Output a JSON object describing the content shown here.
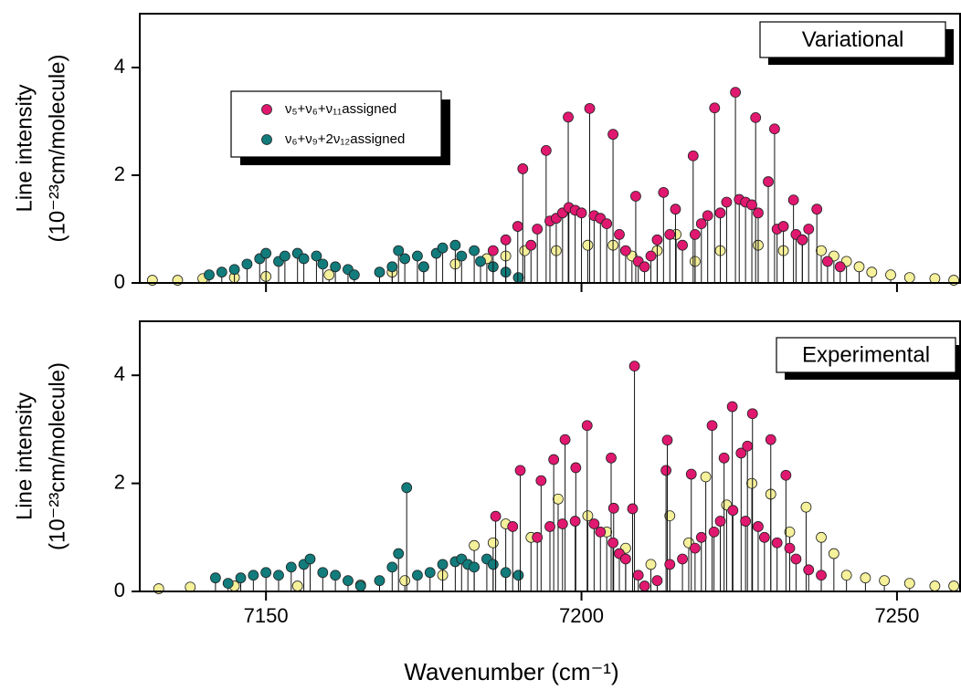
{
  "chart_data": [
    {
      "type": "stem",
      "title": "Variational",
      "ylabel": [
        "Line intensity",
        "(10⁻²³cm/molecule)"
      ],
      "xlim": [
        7130,
        7260
      ],
      "ylim": [
        0,
        5
      ],
      "xticks": [
        7150,
        7200,
        7250
      ],
      "yticks": [
        0,
        2,
        4
      ],
      "show_xtick_labels": false,
      "legend": "upper left",
      "series": [
        {
          "name": "ν₅+ν₆+ν₁₁assigned",
          "color": "#e0186f",
          "x": [
            7190.7,
            7194.4,
            7197.9,
            7201.3,
            7205.0,
            7208.6,
            7217.7,
            7221.1,
            7224.4,
            7227.6,
            7230.6,
            7229.6,
            7233.6,
            7237.3,
            7213.0,
            7214.9,
            7189.9,
            7186,
            7188,
            7192,
            7193,
            7195,
            7196,
            7197,
            7198,
            7199,
            7200,
            7202,
            7203,
            7204,
            7206,
            7207,
            7209,
            7210,
            7211,
            7212,
            7214,
            7216,
            7218,
            7219,
            7220,
            7222,
            7223,
            7225,
            7226,
            7227,
            7228,
            7231,
            7232,
            7234,
            7235,
            7236,
            7239,
            7241
          ],
          "values": [
            2.12,
            2.46,
            3.08,
            3.24,
            2.76,
            1.61,
            2.36,
            3.25,
            3.54,
            3.07,
            2.86,
            1.88,
            1.54,
            1.37,
            1.68,
            1.37,
            1.05,
            0.6,
            0.8,
            0.7,
            1.0,
            1.15,
            1.2,
            1.3,
            1.4,
            1.35,
            1.3,
            1.25,
            1.2,
            1.1,
            0.9,
            0.6,
            0.4,
            0.3,
            0.5,
            0.8,
            0.9,
            0.7,
            0.9,
            1.1,
            1.25,
            1.3,
            1.5,
            1.55,
            1.5,
            1.45,
            1.3,
            1.0,
            1.05,
            0.9,
            0.8,
            1.0,
            0.4,
            0.3
          ]
        },
        {
          "name": "ν₆+ν₉+2ν₁₂assigned",
          "color": "#127b7b",
          "x": [
            7141,
            7143,
            7145,
            7147,
            7149,
            7150,
            7152,
            7153,
            7155,
            7156,
            7158,
            7159,
            7161,
            7163,
            7164,
            7168,
            7170,
            7171,
            7172,
            7174,
            7175,
            7177,
            7178,
            7180,
            7181,
            7183,
            7184,
            7186,
            7188,
            7190
          ],
          "values": [
            0.15,
            0.2,
            0.25,
            0.35,
            0.45,
            0.55,
            0.4,
            0.5,
            0.55,
            0.45,
            0.5,
            0.35,
            0.3,
            0.25,
            0.15,
            0.2,
            0.3,
            0.6,
            0.45,
            0.5,
            0.3,
            0.55,
            0.65,
            0.7,
            0.5,
            0.6,
            0.4,
            0.3,
            0.2,
            0.1
          ]
        },
        {
          "color": "#f5f09a",
          "x": [
            7132,
            7136,
            7140,
            7145,
            7150,
            7160,
            7170,
            7175,
            7180,
            7185,
            7188,
            7191,
            7196,
            7201,
            7205,
            7208,
            7212,
            7215,
            7218,
            7222,
            7228,
            7232,
            7235,
            7238,
            7240,
            7242,
            7244,
            7246,
            7249,
            7252,
            7256,
            7259
          ],
          "values": [
            0.05,
            0.05,
            0.08,
            0.1,
            0.12,
            0.15,
            0.2,
            0.3,
            0.35,
            0.45,
            0.5,
            0.6,
            0.6,
            0.7,
            0.7,
            0.5,
            0.6,
            0.9,
            0.4,
            0.6,
            0.7,
            0.6,
            0.8,
            0.6,
            0.5,
            0.4,
            0.3,
            0.2,
            0.15,
            0.1,
            0.08,
            0.05
          ]
        }
      ]
    },
    {
      "type": "stem",
      "title": "Experimental",
      "ylabel": [
        "Line intensity",
        "(10⁻²³cm/molecule)"
      ],
      "xlabel": "Wavenumber (cm⁻¹)",
      "xlim": [
        7130,
        7260
      ],
      "ylim": [
        0,
        5
      ],
      "xticks": [
        7150,
        7200,
        7250
      ],
      "yticks": [
        0,
        2,
        4
      ],
      "show_xtick_labels": true,
      "series": [
        {
          "color": "#e0186f",
          "x": [
            7208.4,
            7190.3,
            7193.6,
            7195.6,
            7197.4,
            7199.1,
            7200.9,
            7204.7,
            7205.1,
            7208.1,
            7213.4,
            7213.6,
            7217.4,
            7220.7,
            7222.6,
            7223.9,
            7225.3,
            7226.3,
            7227.1,
            7230.0,
            7232.4,
            7186.4,
            7189.1,
            7193,
            7195,
            7197,
            7199,
            7202,
            7203,
            7205,
            7206,
            7207,
            7209,
            7210,
            7212,
            7214,
            7216,
            7218,
            7219,
            7221,
            7222,
            7224,
            7226,
            7228,
            7229,
            7231,
            7233,
            7234,
            7236,
            7238
          ],
          "values": [
            4.17,
            2.24,
            2.05,
            2.44,
            2.81,
            2.29,
            3.07,
            2.47,
            1.54,
            1.53,
            2.24,
            2.8,
            2.17,
            3.07,
            2.47,
            3.42,
            2.56,
            2.69,
            3.29,
            2.81,
            2.15,
            1.39,
            1.2,
            1.0,
            1.2,
            1.25,
            1.3,
            1.25,
            1.1,
            0.9,
            0.7,
            0.6,
            0.3,
            0.1,
            0.2,
            0.5,
            0.6,
            0.8,
            1.0,
            1.1,
            1.3,
            1.5,
            1.3,
            1.2,
            1.0,
            0.9,
            0.8,
            0.6,
            0.4,
            0.3
          ]
        },
        {
          "color": "#127b7b",
          "x": [
            7142,
            7144,
            7146,
            7148,
            7150,
            7152,
            7154,
            7156,
            7157,
            7159,
            7161,
            7163,
            7165,
            7168,
            7170,
            7171,
            7172.3,
            7174,
            7176,
            7178,
            7180,
            7181,
            7182,
            7183,
            7185,
            7186,
            7188,
            7190
          ],
          "values": [
            0.25,
            0.15,
            0.25,
            0.3,
            0.35,
            0.3,
            0.45,
            0.5,
            0.6,
            0.35,
            0.3,
            0.2,
            0.1,
            0.2,
            0.45,
            0.7,
            1.92,
            0.3,
            0.35,
            0.5,
            0.55,
            0.6,
            0.5,
            0.45,
            0.6,
            0.5,
            0.35,
            0.3
          ]
        },
        {
          "color": "#f5f09a",
          "x": [
            7133,
            7138,
            7145,
            7155,
            7165,
            7172,
            7178,
            7183,
            7186,
            7188,
            7192,
            7196.3,
            7201,
            7204,
            7207,
            7211,
            7214,
            7217,
            7219.7,
            7223,
            7227,
            7230,
            7233,
            7235.6,
            7238,
            7240,
            7242,
            7245,
            7248,
            7252,
            7256,
            7259
          ],
          "values": [
            0.05,
            0.08,
            0.1,
            0.1,
            0.12,
            0.2,
            0.3,
            0.85,
            0.9,
            1.25,
            1.0,
            1.71,
            1.4,
            1.1,
            0.8,
            0.5,
            1.4,
            0.9,
            2.12,
            1.6,
            2.0,
            1.8,
            1.1,
            1.56,
            1.0,
            0.7,
            0.3,
            0.25,
            0.2,
            0.15,
            0.1,
            0.1
          ]
        }
      ]
    }
  ]
}
